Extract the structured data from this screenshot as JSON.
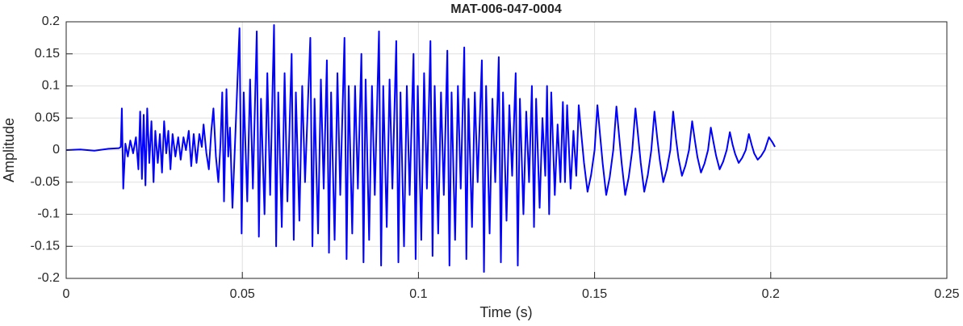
{
  "chart_data": {
    "type": "line",
    "title": "MAT-006-047-0004",
    "xlabel": "Time (s)",
    "ylabel": "Amplitude",
    "xlim": [
      0,
      0.25
    ],
    "xticks": [
      0,
      0.05,
      0.1,
      0.15,
      0.2,
      0.25
    ],
    "ylim": [
      -0.2,
      0.2
    ],
    "yticks": [
      -0.2,
      -0.15,
      -0.1,
      -0.05,
      0,
      0.05,
      0.1,
      0.15,
      0.2
    ],
    "grid": true,
    "color": "#0000ff",
    "x": [
      0,
      0.004,
      0.008,
      0.012,
      0.015,
      0.0155,
      0.0158,
      0.0162,
      0.0168,
      0.0175,
      0.0182,
      0.019,
      0.0198,
      0.0205,
      0.021,
      0.0215,
      0.022,
      0.0225,
      0.023,
      0.0236,
      0.0242,
      0.0248,
      0.0253,
      0.026,
      0.0266,
      0.0272,
      0.0278,
      0.0284,
      0.029,
      0.0296,
      0.0302,
      0.031,
      0.0318,
      0.0325,
      0.0333,
      0.034,
      0.0348,
      0.0355,
      0.0362,
      0.037,
      0.0378,
      0.0385,
      0.039,
      0.0398,
      0.0405,
      0.0412,
      0.0418,
      0.0425,
      0.0432,
      0.0438,
      0.0443,
      0.0448,
      0.0455,
      0.046,
      0.0465,
      0.0472,
      0.048,
      0.0492,
      0.0498,
      0.0504,
      0.0514,
      0.0522,
      0.053,
      0.0541,
      0.0547,
      0.0553,
      0.0563,
      0.0571,
      0.0579,
      0.059,
      0.0596,
      0.0602,
      0.0612,
      0.062,
      0.0628,
      0.064,
      0.0646,
      0.0652,
      0.0662,
      0.067,
      0.0678,
      0.0693,
      0.0699,
      0.0705,
      0.0715,
      0.0723,
      0.0731,
      0.074,
      0.0746,
      0.0752,
      0.0762,
      0.077,
      0.0778,
      0.079,
      0.0796,
      0.0802,
      0.0812,
      0.082,
      0.0828,
      0.0838,
      0.0844,
      0.085,
      0.086,
      0.0868,
      0.0876,
      0.0888,
      0.0894,
      0.09,
      0.091,
      0.0918,
      0.0926,
      0.0937,
      0.0943,
      0.0949,
      0.0959,
      0.0967,
      0.0975,
      0.0986,
      0.0992,
      0.0998,
      0.1008,
      0.1016,
      0.1024,
      0.1034,
      0.104,
      0.1046,
      0.1056,
      0.1064,
      0.1072,
      0.1082,
      0.1088,
      0.1094,
      0.1104,
      0.1112,
      0.112,
      0.113,
      0.1136,
      0.1142,
      0.1152,
      0.116,
      0.1168,
      0.118,
      0.1186,
      0.1192,
      0.1202,
      0.121,
      0.1218,
      0.1228,
      0.1234,
      0.124,
      0.125,
      0.1258,
      0.1266,
      0.1276,
      0.1282,
      0.1288,
      0.1298,
      0.1306,
      0.1314,
      0.1322,
      0.1328,
      0.1334,
      0.1344,
      0.1352,
      0.136,
      0.1365,
      0.1371,
      0.1377,
      0.1387,
      0.1395,
      0.1403,
      0.141,
      0.1416,
      0.1422,
      0.1432,
      0.144,
      0.1448,
      0.1455,
      0.1463,
      0.147,
      0.148,
      0.149,
      0.15,
      0.1508,
      0.1516,
      0.1523,
      0.1533,
      0.1543,
      0.1553,
      0.1562,
      0.157,
      0.1577,
      0.1587,
      0.1597,
      0.1607,
      0.1616,
      0.1624,
      0.1631,
      0.1641,
      0.1651,
      0.1661,
      0.167,
      0.1678,
      0.1685,
      0.1695,
      0.1705,
      0.1715,
      0.1723,
      0.1731,
      0.1738,
      0.1748,
      0.1758,
      0.1768,
      0.1777,
      0.1785,
      0.1792,
      0.1802,
      0.1812,
      0.1822,
      0.183,
      0.1838,
      0.1845,
      0.1855,
      0.1865,
      0.1875,
      0.1884,
      0.1892,
      0.1899,
      0.1909,
      0.1919,
      0.1929,
      0.1938,
      0.1946,
      0.1953,
      0.1963,
      0.1973,
      0.1983,
      0.1995,
      0.2005,
      0.2012
    ],
    "values": [
      0,
      0.001,
      -0.001,
      0.002,
      0.003,
      0.005,
      0.065,
      -0.06,
      0.01,
      -0.01,
      0.015,
      -0.005,
      0.02,
      -0.03,
      0.06,
      -0.045,
      0.055,
      -0.055,
      0.065,
      -0.02,
      0.045,
      -0.05,
      0.03,
      -0.02,
      0.025,
      -0.035,
      0.045,
      -0.005,
      0.03,
      -0.03,
      0.025,
      -0.01,
      0.02,
      -0.015,
      0.02,
      0,
      0.03,
      -0.025,
      0.025,
      -0.02,
      0.025,
      0.005,
      0.04,
      -0.005,
      -0.03,
      0.03,
      0.065,
      -0.01,
      -0.05,
      0.01,
      0.09,
      -0.08,
      0.095,
      -0.01,
      0.035,
      -0.09,
      0.02,
      0.19,
      -0.13,
      0.09,
      -0.08,
      0.11,
      -0.06,
      0.185,
      -0.135,
      0.08,
      -0.1,
      0.12,
      -0.07,
      0.195,
      -0.15,
      0.09,
      -0.12,
      0.12,
      -0.08,
      0.15,
      -0.14,
      0.09,
      -0.11,
      0.1,
      -0.05,
      0.175,
      -0.15,
      0.08,
      -0.13,
      0.11,
      -0.06,
      0.14,
      -0.16,
      0.09,
      -0.14,
      0.12,
      -0.07,
      0.175,
      -0.17,
      0.1,
      -0.13,
      0.1,
      -0.06,
      0.15,
      -0.175,
      0.11,
      -0.14,
      0.1,
      -0.07,
      0.185,
      -0.18,
      0.1,
      -0.12,
      0.11,
      -0.06,
      0.17,
      -0.175,
      0.09,
      -0.15,
      0.1,
      -0.07,
      0.15,
      -0.17,
      0.1,
      -0.14,
      0.12,
      -0.06,
      0.17,
      -0.165,
      0.1,
      -0.13,
      0.09,
      -0.07,
      0.155,
      -0.18,
      0.09,
      -0.14,
      0.1,
      -0.06,
      0.16,
      -0.17,
      0.08,
      -0.12,
      0.09,
      -0.05,
      0.14,
      -0.19,
      0.1,
      -0.13,
      0.08,
      -0.05,
      0.145,
      -0.175,
      0.09,
      -0.11,
      0.07,
      -0.04,
      0.12,
      -0.18,
      0.08,
      -0.1,
      0.06,
      -0.05,
      0.1,
      -0.12,
      0.08,
      -0.09,
      0.05,
      -0.04,
      0.1,
      -0.1,
      0.09,
      -0.07,
      0.04,
      -0.05,
      0.075,
      -0.05,
      0.07,
      -0.06,
      0.03,
      -0.04,
      0.07,
      0.021,
      -0.02,
      -0.065,
      -0.039,
      0,
      0.07,
      0.021,
      -0.021,
      -0.07,
      -0.042,
      0,
      0.068,
      0.02,
      -0.021,
      -0.07,
      -0.042,
      0,
      0.065,
      0.02,
      -0.02,
      -0.065,
      -0.039,
      0,
      0.06,
      0.018,
      -0.015,
      -0.05,
      -0.03,
      0,
      0.06,
      0.018,
      -0.012,
      -0.04,
      -0.024,
      0,
      0.045,
      0.014,
      -0.011,
      -0.035,
      -0.021,
      0,
      0.035,
      0.011,
      -0.009,
      -0.03,
      -0.018,
      0,
      0.028,
      0.008,
      -0.006,
      -0.02,
      -0.012,
      0,
      0.025,
      0.008,
      -0.005,
      -0.015,
      -0.009,
      0,
      0.02,
      0.012,
      0.005
    ]
  }
}
